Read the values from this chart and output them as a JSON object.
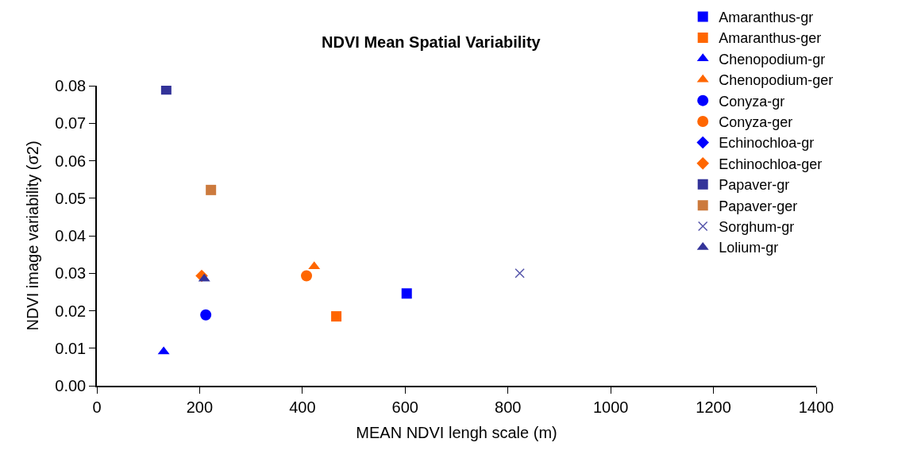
{
  "chart_data": {
    "type": "scatter",
    "title": "NDVI Mean Spatial Variability",
    "xlabel": "MEAN NDVI lengh scale (m)",
    "ylabel": "NDVI image variability (σ2)",
    "xlim": [
      0,
      1400
    ],
    "xticks": [
      0,
      200,
      400,
      600,
      800,
      1000,
      1200,
      1400
    ],
    "ylim": [
      0,
      0.08
    ],
    "yticks": [
      {
        "value": 0,
        "label": "0.00"
      },
      {
        "value": 0.01,
        "label": "0.01"
      },
      {
        "value": 0.02,
        "label": "0.02"
      },
      {
        "value": 0.03,
        "label": "0.03"
      },
      {
        "value": 0.04,
        "label": "0.04"
      },
      {
        "value": 0.05,
        "label": "0.05"
      },
      {
        "value": 0.06,
        "label": "0.06"
      },
      {
        "value": 0.07,
        "label": "0.07"
      },
      {
        "value": 0.08,
        "label": "0.08"
      }
    ],
    "legend": "right",
    "series": [
      {
        "name": "Amaranthus-gr",
        "color": "#0000ff",
        "marker": "square",
        "x": [
          603
        ],
        "values": [
          0.0246
        ]
      },
      {
        "name": "Amaranthus-ger",
        "color": "#ff6600",
        "marker": "square",
        "x": [
          466
        ],
        "values": [
          0.0185
        ]
      },
      {
        "name": "Chenopodium-gr",
        "color": "#0000ff",
        "marker": "triangle",
        "x": [
          130
        ],
        "values": [
          0.0091
        ]
      },
      {
        "name": "Chenopodium-ger",
        "color": "#ff6600",
        "marker": "triangle",
        "x": [
          423
        ],
        "values": [
          0.0318
        ]
      },
      {
        "name": "Conyza-gr",
        "color": "#0000ff",
        "marker": "circle",
        "x": [
          212
        ],
        "values": [
          0.0189
        ]
      },
      {
        "name": "Conyza-ger",
        "color": "#ff6600",
        "marker": "circle",
        "x": [
          408
        ],
        "values": [
          0.0293
        ]
      },
      {
        "name": "Echinochloa-gr",
        "color": "#0000ff",
        "marker": "diamond",
        "x": [
          null
        ],
        "values": [
          null
        ]
      },
      {
        "name": "Echinochloa-ger",
        "color": "#ff6600",
        "marker": "diamond",
        "x": [
          204
        ],
        "values": [
          0.0293
        ]
      },
      {
        "name": "Papaver-gr",
        "color": "#333399",
        "marker": "square",
        "x": [
          135
        ],
        "values": [
          0.079
        ]
      },
      {
        "name": "Papaver-ger",
        "color": "#cc7a3d",
        "marker": "square",
        "x": [
          222
        ],
        "values": [
          0.0522
        ]
      },
      {
        "name": "Sorghum-gr",
        "color": "#5555aa",
        "marker": "cross",
        "x": [
          823
        ],
        "values": [
          0.03
        ]
      },
      {
        "name": "Lolium-gr",
        "color": "#333399",
        "marker": "triangle",
        "x": [
          209
        ],
        "values": [
          0.0285
        ]
      }
    ]
  }
}
